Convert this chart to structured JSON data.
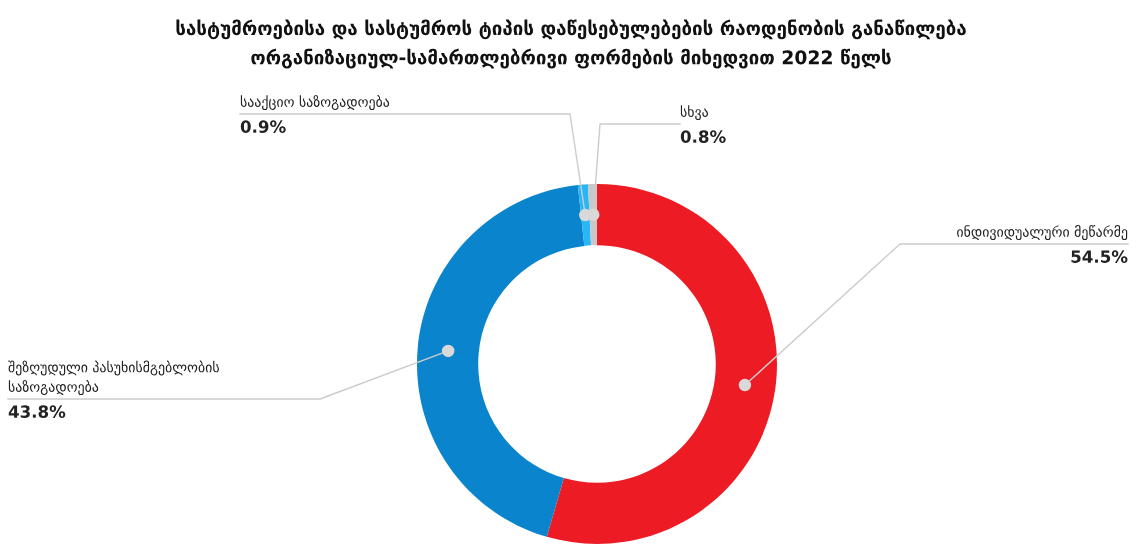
{
  "chart_data": {
    "type": "donut",
    "title": "სასტუმროებისა და სასტუმროს ტიპის დაწესებულებების რაოდენობის განაწილება\nორგანიზაციულ-სამართლებრივი ფორმების მიხედვით 2022 წელს",
    "categories": [
      "ინდივიდუალური მეწარმე",
      "შეზღუდული პასუხისმგებლობის\nსაზოგადოება",
      "სააქციო საზოგადოება",
      "სხვა"
    ],
    "values": [
      54.5,
      43.8,
      0.9,
      0.8
    ],
    "colors": [
      "#ed1c24",
      "#0a84cc",
      "#29b6f6",
      "#c8c8c8"
    ],
    "value_labels": [
      "54.5%",
      "43.8%",
      "0.9%",
      "0.8%"
    ],
    "legend": false
  }
}
